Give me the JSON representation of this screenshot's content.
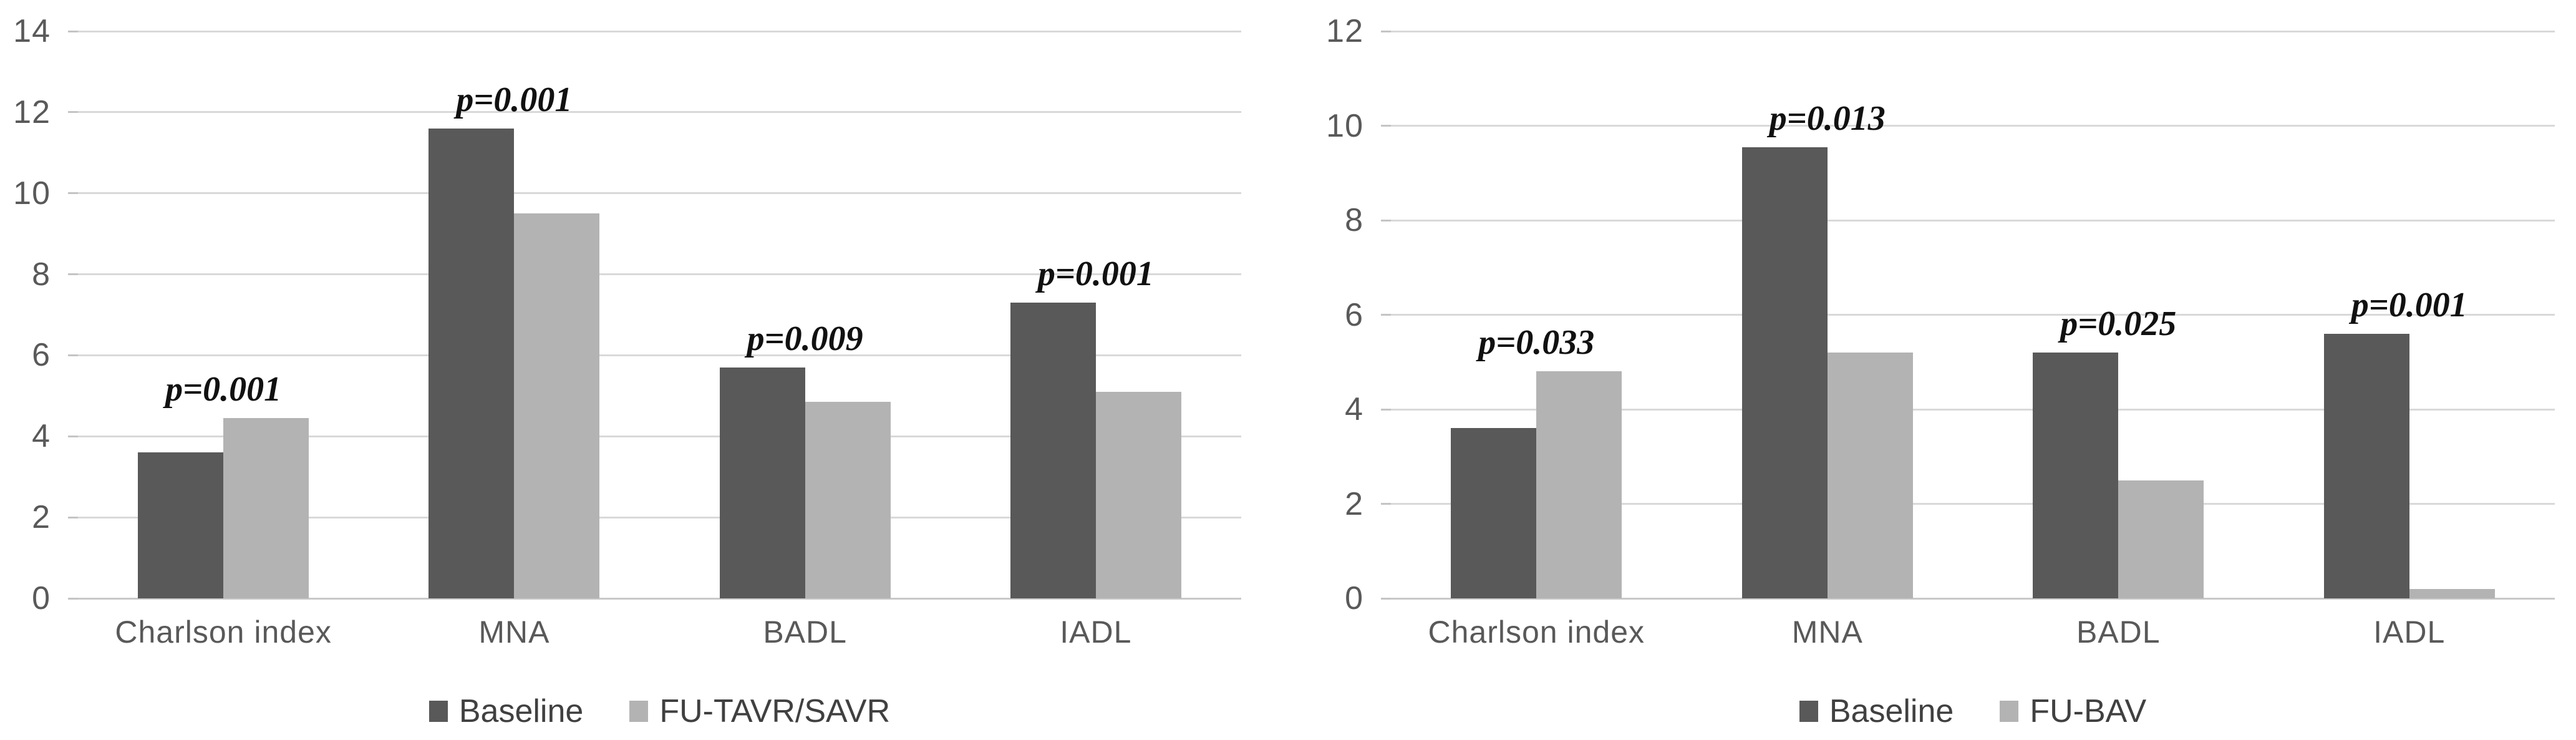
{
  "figure": {
    "background": "#ffffff"
  },
  "colors": {
    "baseline_bar": "#595959",
    "followup_bar": "#b3b3b3",
    "gridline": "#d9d9d9",
    "axis_line": "#c9c9c9",
    "tick_stub": "#c4c4c4",
    "tick_text": "#595959",
    "category_text": "#595959",
    "legend_text": "#404040",
    "p_text": "#111111"
  },
  "chart_data": [
    {
      "type": "bar",
      "title": "",
      "xlabel": "",
      "ylabel": "",
      "categories": [
        "Charlson index",
        "MNA",
        "BADL",
        "IADL"
      ],
      "series": [
        {
          "name": "Baseline",
          "values": [
            3.6,
            11.6,
            5.7,
            7.3
          ]
        },
        {
          "name": "FU-TAVR/SAVR",
          "values": [
            4.45,
            9.5,
            4.85,
            5.1
          ]
        }
      ],
      "p_values": [
        "p=0.001",
        "p=0.001",
        "p=0.009",
        "p=0.001"
      ],
      "ylim": [
        0,
        14
      ],
      "yticks": [
        0,
        2,
        4,
        6,
        8,
        10,
        12,
        14
      ],
      "grid": true,
      "legend_position": "bottom",
      "legend": [
        "Baseline",
        "FU-TAVR/SAVR"
      ]
    },
    {
      "type": "bar",
      "title": "",
      "xlabel": "",
      "ylabel": "",
      "categories": [
        "Charlson index",
        "MNA",
        "BADL",
        "IADL"
      ],
      "series": [
        {
          "name": "Baseline",
          "values": [
            3.6,
            9.55,
            5.2,
            5.6
          ]
        },
        {
          "name": "FU-BAV",
          "values": [
            4.8,
            5.2,
            2.5,
            0.2
          ]
        }
      ],
      "p_values": [
        "p=0.033",
        "p=0.013",
        "p=0.025",
        "p=0.001"
      ],
      "ylim": [
        0,
        12
      ],
      "yticks": [
        0,
        2,
        4,
        6,
        8,
        10,
        12
      ],
      "grid": true,
      "legend_position": "bottom",
      "legend": [
        "Baseline",
        "FU-BAV"
      ]
    }
  ]
}
